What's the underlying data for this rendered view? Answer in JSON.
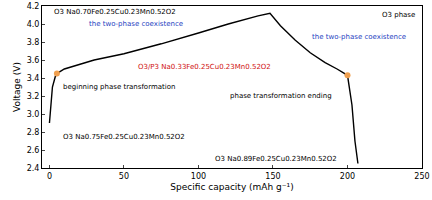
{
  "chart_data": {
    "type": "line",
    "x_label": "Specific capacity (mAh g⁻¹)",
    "y_label": "Voltage (V)",
    "xlim": [
      -5,
      250
    ],
    "xticks": [
      0,
      50,
      100,
      150,
      200,
      250
    ],
    "ylim": [
      2.4,
      4.2
    ],
    "yticks": [
      2.4,
      2.6,
      2.8,
      {
        "value": 3,
        "label": "3.0"
      },
      3.2,
      3.4,
      3.6,
      3.8,
      {
        "value": 4,
        "label": "4.0"
      },
      4.2
    ],
    "grid": false,
    "series": [
      {
        "type": "line",
        "color": "#000000",
        "x": [
          0,
          1,
          2,
          4,
          6,
          10,
          20,
          30,
          50,
          75,
          100,
          120,
          140,
          148,
          155,
          165,
          175,
          185,
          193,
          200,
          203,
          205,
          207
        ],
        "values": [
          2.9,
          3.1,
          3.3,
          3.42,
          3.46,
          3.5,
          3.55,
          3.6,
          3.67,
          3.78,
          3.9,
          4.0,
          4.09,
          4.12,
          3.98,
          3.82,
          3.68,
          3.57,
          3.5,
          3.43,
          3.1,
          2.7,
          2.45
        ]
      },
      {
        "type": "scatter",
        "marker": "circle",
        "color": "#f0a050",
        "x": [
          5,
          200
        ],
        "values": [
          3.45,
          3.43
        ]
      }
    ],
    "annotations": [
      {
        "text": "O3 Na0.70Fe0.25Cu0.23Mn0.52O2",
        "x": 2,
        "y": 4.13,
        "color": "#000000"
      },
      {
        "text": "the two-phase coexistence",
        "x": 25,
        "y": 4.0,
        "color": "#1f3fbf"
      },
      {
        "text": "O3/P3 Na0.33Fe0.25Cu0.23Mn0.52O2",
        "x": 58,
        "y": 3.52,
        "color": "#d01010"
      },
      {
        "text": "the two-phase coexistence",
        "x": 175,
        "y": 3.86,
        "color": "#1f3fbf"
      },
      {
        "text": "O3 phase",
        "x": 222,
        "y": 4.1,
        "color": "#000000"
      },
      {
        "text": "beginning phase transformation",
        "x": 8,
        "y": 3.3,
        "color": "#000000"
      },
      {
        "text": "O3 Na0.75Fe0.25Cu0.23Mn0.52O2",
        "x": 8,
        "y": 2.75,
        "color": "#000000"
      },
      {
        "text": "phase transformation ending",
        "x": 120,
        "y": 3.2,
        "color": "#000000"
      },
      {
        "text": "O3 Na0.89Fe0.25Cu0.23Mn0.52O2",
        "x": 110,
        "y": 2.5,
        "color": "#000000"
      }
    ]
  }
}
